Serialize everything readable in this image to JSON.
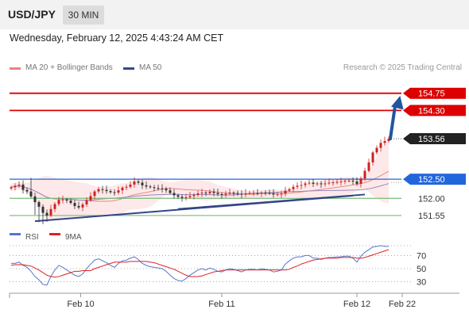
{
  "header": {
    "symbol": "USD/JPY",
    "timeframe": "30 MIN"
  },
  "datetime": "Wednesday, February 12, 2025 4:43:24 AM CET",
  "copyright": "Research © 2025 Trading Central",
  "colors": {
    "resistance": "#dd0000",
    "pivot": "#2266dd",
    "support": "#77bb77",
    "trendline": "#334488",
    "arrow": "#2255a0",
    "bollinger_fill": "#fde4e4",
    "ma20": "#e88888",
    "ma50": "#9988bb",
    "candle_up": "#cc2222",
    "candle_down": "#333333",
    "rsi": "#5577cc",
    "rsi_ma": "#dd2222",
    "last_price_box": "#222222"
  },
  "chart_data": [
    {
      "type": "candlestick",
      "legend": [
        {
          "label": "MA 20 + Bollinger Bands",
          "color": "#f08080"
        },
        {
          "label": "MA 50",
          "color": "#334a8a"
        }
      ],
      "levels": [
        {
          "value": 154.75,
          "label": "154.75",
          "kind": "resistance"
        },
        {
          "value": 154.3,
          "label": "154.30",
          "kind": "resistance"
        },
        {
          "value": 152.5,
          "label": "152.50",
          "kind": "pivot"
        },
        {
          "value": 152.0,
          "label": "152.00",
          "kind": "support"
        },
        {
          "value": 151.55,
          "label": "151.55",
          "kind": "support"
        }
      ],
      "last_price": {
        "value": 153.56,
        "label": "153.56"
      },
      "x_tick_labels": [
        "Feb 10",
        "Feb 11",
        "Feb 12",
        "Feb 22"
      ],
      "ylim": [
        151.3,
        155.2
      ],
      "close": [
        152.29,
        152.33,
        152.36,
        152.22,
        152.18,
        152.05,
        151.9,
        151.78,
        151.62,
        151.55,
        151.72,
        151.85,
        151.96,
        151.97,
        151.94,
        151.88,
        151.8,
        151.76,
        151.84,
        151.95,
        152.06,
        152.18,
        152.24,
        152.22,
        152.19,
        152.16,
        152.15,
        152.21,
        152.28,
        152.3,
        152.36,
        152.44,
        152.41,
        152.34,
        152.31,
        152.29,
        152.27,
        152.26,
        152.25,
        152.21,
        152.14,
        152.08,
        152.04,
        152.01,
        152.03,
        152.06,
        152.09,
        152.13,
        152.15,
        152.13,
        152.17,
        152.14,
        152.11,
        152.09,
        152.12,
        152.15,
        152.14,
        152.12,
        152.1,
        152.13,
        152.14,
        152.14,
        152.13,
        152.15,
        152.14,
        152.13,
        152.1,
        152.11,
        152.12,
        152.2,
        152.24,
        152.3,
        152.33,
        152.35,
        152.39,
        152.41,
        152.38,
        152.39,
        152.37,
        152.39,
        152.41,
        152.42,
        152.43,
        152.44,
        152.46,
        152.46,
        152.44,
        152.38,
        152.52,
        152.72,
        152.94,
        153.2,
        153.32,
        153.45,
        153.5,
        153.56
      ],
      "rsi": {
        "label": "RSI",
        "ma_label": "9MA",
        "ticks": [
          70,
          50,
          30
        ],
        "ylim": [
          15,
          85
        ],
        "values": [
          58,
          58,
          60,
          55,
          52,
          46,
          38,
          33,
          26,
          25,
          38,
          48,
          55,
          52,
          48,
          44,
          40,
          38,
          42,
          50,
          57,
          63,
          65,
          62,
          59,
          55,
          52,
          58,
          62,
          63,
          66,
          68,
          64,
          58,
          55,
          53,
          52,
          51,
          50,
          46,
          40,
          35,
          32,
          31,
          35,
          40,
          44,
          48,
          50,
          48,
          51,
          49,
          46,
          45,
          48,
          50,
          49,
          47,
          45,
          48,
          49,
          49,
          48,
          50,
          49,
          48,
          45,
          46,
          48,
          57,
          62,
          66,
          68,
          68,
          70,
          70,
          66,
          66,
          64,
          66,
          67,
          67,
          68,
          68,
          69,
          69,
          66,
          60,
          69,
          75,
          79,
          83,
          84,
          85,
          84,
          84
        ],
        "ma_values": [
          55,
          56,
          56,
          56,
          55,
          54,
          51,
          48,
          44,
          40,
          38,
          37,
          38,
          40,
          42,
          44,
          46,
          46,
          47,
          47,
          47,
          50,
          52,
          54,
          56,
          58,
          60,
          60,
          60,
          60,
          61,
          61,
          61,
          61,
          61,
          60,
          59,
          57,
          55,
          53,
          51,
          49,
          46,
          43,
          40,
          38,
          38,
          38,
          39,
          41,
          43,
          45,
          46,
          47,
          48,
          48,
          48,
          48,
          48,
          48,
          48,
          48,
          48,
          48,
          48,
          48,
          48,
          48,
          48,
          48,
          49,
          52,
          54,
          57,
          59,
          61,
          63,
          64,
          65,
          66,
          66,
          66,
          66,
          67,
          67,
          67,
          67,
          66,
          66,
          67,
          69,
          71,
          73,
          75,
          77,
          79
        ],
        "x_tick_labels": [
          "Feb 10",
          "Feb 11",
          "Feb 12",
          "Feb 22"
        ]
      }
    }
  ]
}
